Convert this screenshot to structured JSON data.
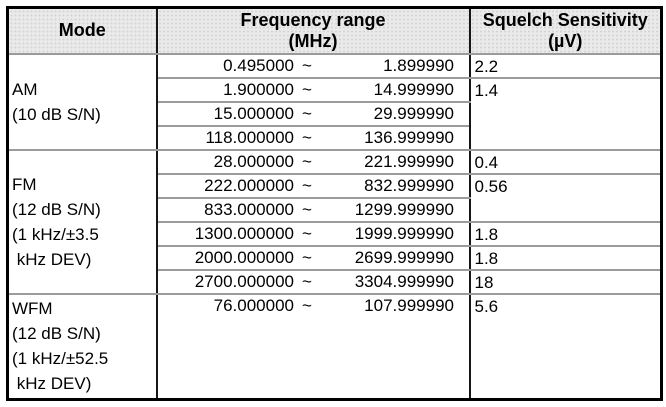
{
  "table": {
    "headers": {
      "mode": "Mode",
      "frequency_line1": "Frequency range",
      "frequency_line2": "(MHz)",
      "squelch_line1": "Squelch Sensitivity",
      "squelch_line2": "(µV)"
    },
    "separator": "~",
    "modes": [
      {
        "name": "AM",
        "lines": [
          "AM",
          "(10 dB S/N)"
        ]
      },
      {
        "name": "FM",
        "lines": [
          "FM",
          "(12 dB S/N)",
          "(1 kHz/±3.5",
          " kHz DEV)"
        ]
      },
      {
        "name": "WFM",
        "lines": [
          "WFM",
          "(12 dB S/N)",
          "(1 kHz/±52.5",
          " kHz DEV)"
        ]
      }
    ],
    "rows": [
      {
        "from": "0.495000",
        "to": "1.899990",
        "squelch": "2.2"
      },
      {
        "from": "1.900000",
        "to": "14.999990",
        "squelch": "1.4"
      },
      {
        "from": "15.000000",
        "to": "29.999990"
      },
      {
        "from": "118.000000",
        "to": "136.999990"
      },
      {
        "from": "28.000000",
        "to": "221.999990",
        "squelch": "0.4"
      },
      {
        "from": "222.000000",
        "to": "832.999990",
        "squelch": "0.56"
      },
      {
        "from": "833.000000",
        "to": "1299.999990"
      },
      {
        "from": "1300.000000",
        "to": "1999.999990",
        "squelch": "1.8"
      },
      {
        "from": "2000.000000",
        "to": "2699.999990",
        "squelch": "1.8"
      },
      {
        "from": "2700.000000",
        "to": "3304.999990",
        "squelch": "18"
      },
      {
        "from": "76.000000",
        "to": "107.999990",
        "squelch": "5.6"
      }
    ]
  },
  "colors": {
    "header_background": "#eaeaea",
    "outer_border": "#000000",
    "column_border": "#161616",
    "row_border": "#9b9b9b",
    "text": "#000000",
    "page_background": "#ffffff"
  }
}
